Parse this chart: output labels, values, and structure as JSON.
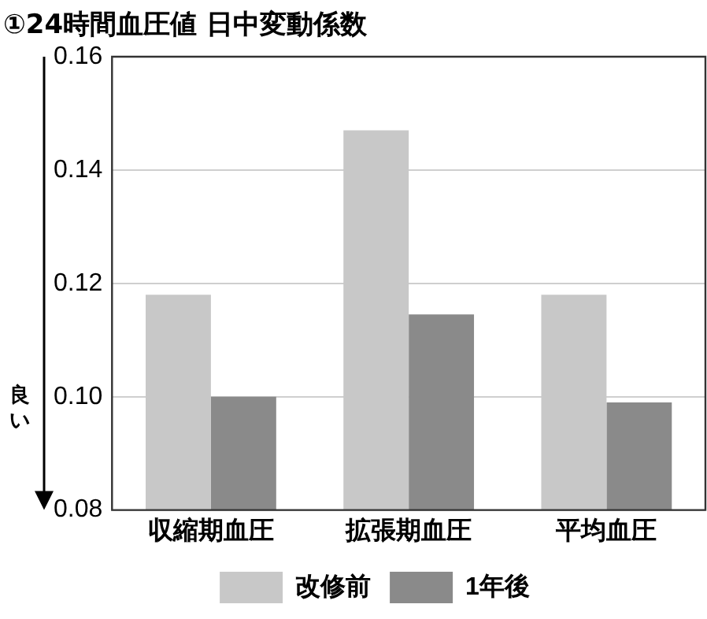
{
  "chart_data": {
    "type": "bar",
    "title": "①24時間血圧値 日中変動係数",
    "categories": [
      "収縮期血圧",
      "拡張期血圧",
      "平均血圧"
    ],
    "series": [
      {
        "name": "改修前",
        "color": "#c8c8c8",
        "values": [
          0.118,
          0.147,
          0.118
        ]
      },
      {
        "name": "1年後",
        "color": "#8a8a8a",
        "values": [
          0.1,
          0.1145,
          0.099
        ]
      }
    ],
    "ylim": [
      0.08,
      0.16
    ],
    "yticks": [
      {
        "value": 0.08,
        "label": "0.08"
      },
      {
        "value": 0.1,
        "label": "0.10"
      },
      {
        "value": 0.12,
        "label": "0.12"
      },
      {
        "value": 0.14,
        "label": "0.14"
      },
      {
        "value": 0.16,
        "label": "0.16"
      }
    ],
    "grid": "y",
    "legend": "bottom",
    "annotations": [
      "良い"
    ]
  }
}
